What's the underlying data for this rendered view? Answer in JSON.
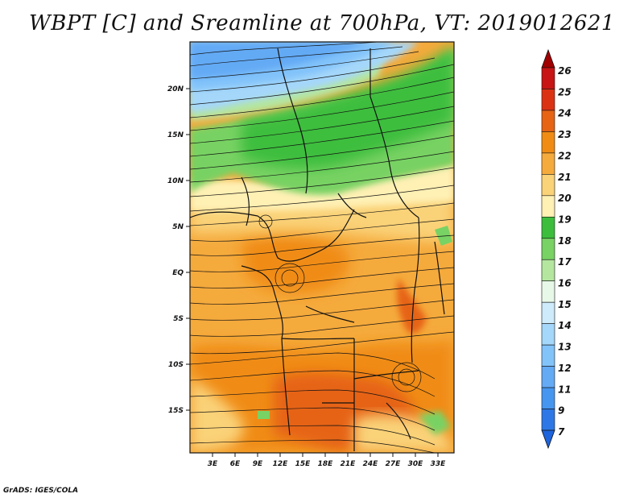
{
  "title": "WBPT [C] and Sreamline at 700hPa, VT: 2019012621",
  "footer": "GrADS: IGES/COLA",
  "map": {
    "x_ticks": [
      "3E",
      "6E",
      "9E",
      "12E",
      "15E",
      "18E",
      "21E",
      "24E",
      "27E",
      "30E",
      "33E"
    ],
    "y_ticks": [
      "20N",
      "15N",
      "10N",
      "5N",
      "EQ",
      "5S",
      "10S",
      "15S"
    ]
  },
  "colorbar": {
    "labels": [
      "7",
      "9",
      "11",
      "12",
      "13",
      "14",
      "15",
      "16",
      "17",
      "18",
      "19",
      "20",
      "21",
      "22",
      "23",
      "24",
      "25",
      "26"
    ],
    "colors": [
      "#1e64dc",
      "#2d78e6",
      "#4696f0",
      "#64aaf5",
      "#82c3fa",
      "#a5d7fa",
      "#cdebfa",
      "#e8f8e8",
      "#b4e6a0",
      "#78d264",
      "#3cbe3c",
      "#fff0b4",
      "#fad278",
      "#f5aa3c",
      "#f08c14",
      "#e66414",
      "#dc3214",
      "#c81414",
      "#a00000"
    ]
  }
}
